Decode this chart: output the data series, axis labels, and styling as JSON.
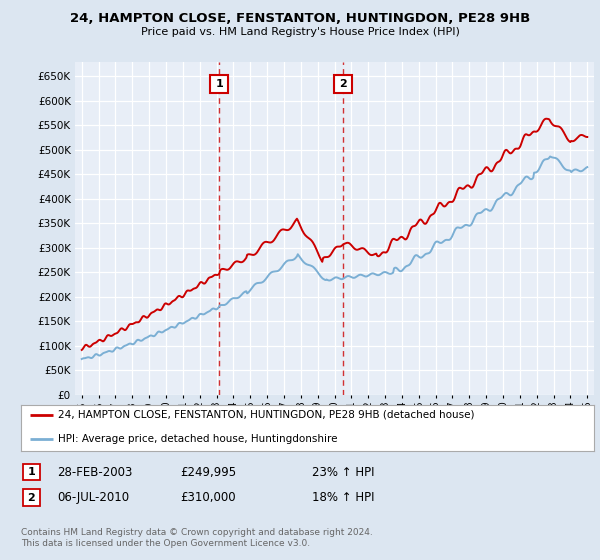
{
  "title_line1": "24, HAMPTON CLOSE, FENSTANTON, HUNTINGDON, PE28 9HB",
  "title_line2": "Price paid vs. HM Land Registry's House Price Index (HPI)",
  "ylim": [
    0,
    680000
  ],
  "yticks": [
    0,
    50000,
    100000,
    150000,
    200000,
    250000,
    300000,
    350000,
    400000,
    450000,
    500000,
    550000,
    600000,
    650000
  ],
  "background_color": "#dce6f1",
  "plot_bg_color": "#e8eef7",
  "grid_color": "#c8d4e8",
  "red_line_color": "#cc0000",
  "blue_line_color": "#7bafd4",
  "marker1_x": 2003.17,
  "marker2_x": 2010.51,
  "legend_entries": [
    "24, HAMPTON CLOSE, FENSTANTON, HUNTINGDON, PE28 9HB (detached house)",
    "HPI: Average price, detached house, Huntingdonshire"
  ],
  "table_rows": [
    {
      "num": "1",
      "date": "28-FEB-2003",
      "price": "£249,995",
      "change": "23% ↑ HPI"
    },
    {
      "num": "2",
      "date": "06-JUL-2010",
      "price": "£310,000",
      "change": "18% ↑ HPI"
    }
  ],
  "footnote": "Contains HM Land Registry data © Crown copyright and database right 2024.\nThis data is licensed under the Open Government Licence v3.0.",
  "xmin": 1994.6,
  "xmax": 2025.4
}
